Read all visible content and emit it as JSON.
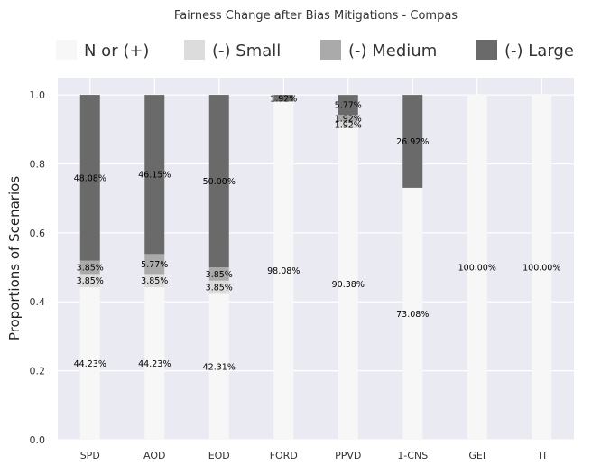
{
  "chart_data": {
    "type": "bar",
    "stacked": true,
    "title": "Fairness Change after Bias Mitigations - Compas",
    "xlabel": "",
    "ylabel": "Proportions of Scenarios",
    "ylim": [
      0,
      1.05
    ],
    "yticks": [
      "0.0",
      "0.2",
      "0.4",
      "0.6",
      "0.8",
      "1.0"
    ],
    "categories": [
      "SPD",
      "AOD",
      "EOD",
      "FORD",
      "PPVD",
      "1-CNS",
      "GEI",
      "TI"
    ],
    "grid": true,
    "legend_position": "top",
    "series": [
      {
        "name": "N or (+)",
        "color": "#f7f7f7",
        "values": [
          0.4423,
          0.4423,
          0.4231,
          0.9808,
          0.9038,
          0.7308,
          1.0,
          1.0
        ],
        "labels": [
          "44.23%",
          "44.23%",
          "42.31%",
          "98.08%",
          "90.38%",
          "73.08%",
          "100.00%",
          "100.00%"
        ]
      },
      {
        "name": "(-) Small",
        "color": "#dcdcdc",
        "values": [
          0.0385,
          0.0385,
          0.0385,
          0,
          0.0192,
          0,
          0,
          0
        ],
        "labels": [
          "3.85%",
          "3.85%",
          "3.85%",
          "",
          "1.92%",
          "",
          "",
          ""
        ]
      },
      {
        "name": "(-) Medium",
        "color": "#aaaaaa",
        "values": [
          0.0385,
          0.0577,
          0.0385,
          0,
          0.0192,
          0,
          0,
          0
        ],
        "labels": [
          "3.85%",
          "5.77%",
          "3.85%",
          "",
          "1.92%",
          "",
          "",
          ""
        ]
      },
      {
        "name": "(-) Large",
        "color": "#6a6a6a",
        "values": [
          0.4808,
          0.4615,
          0.5,
          0.0192,
          0.0577,
          0.2692,
          0,
          0
        ],
        "labels": [
          "48.08%",
          "46.15%",
          "50.00%",
          "1.92%",
          "5.77%",
          "26.92%",
          "",
          ""
        ]
      }
    ]
  }
}
